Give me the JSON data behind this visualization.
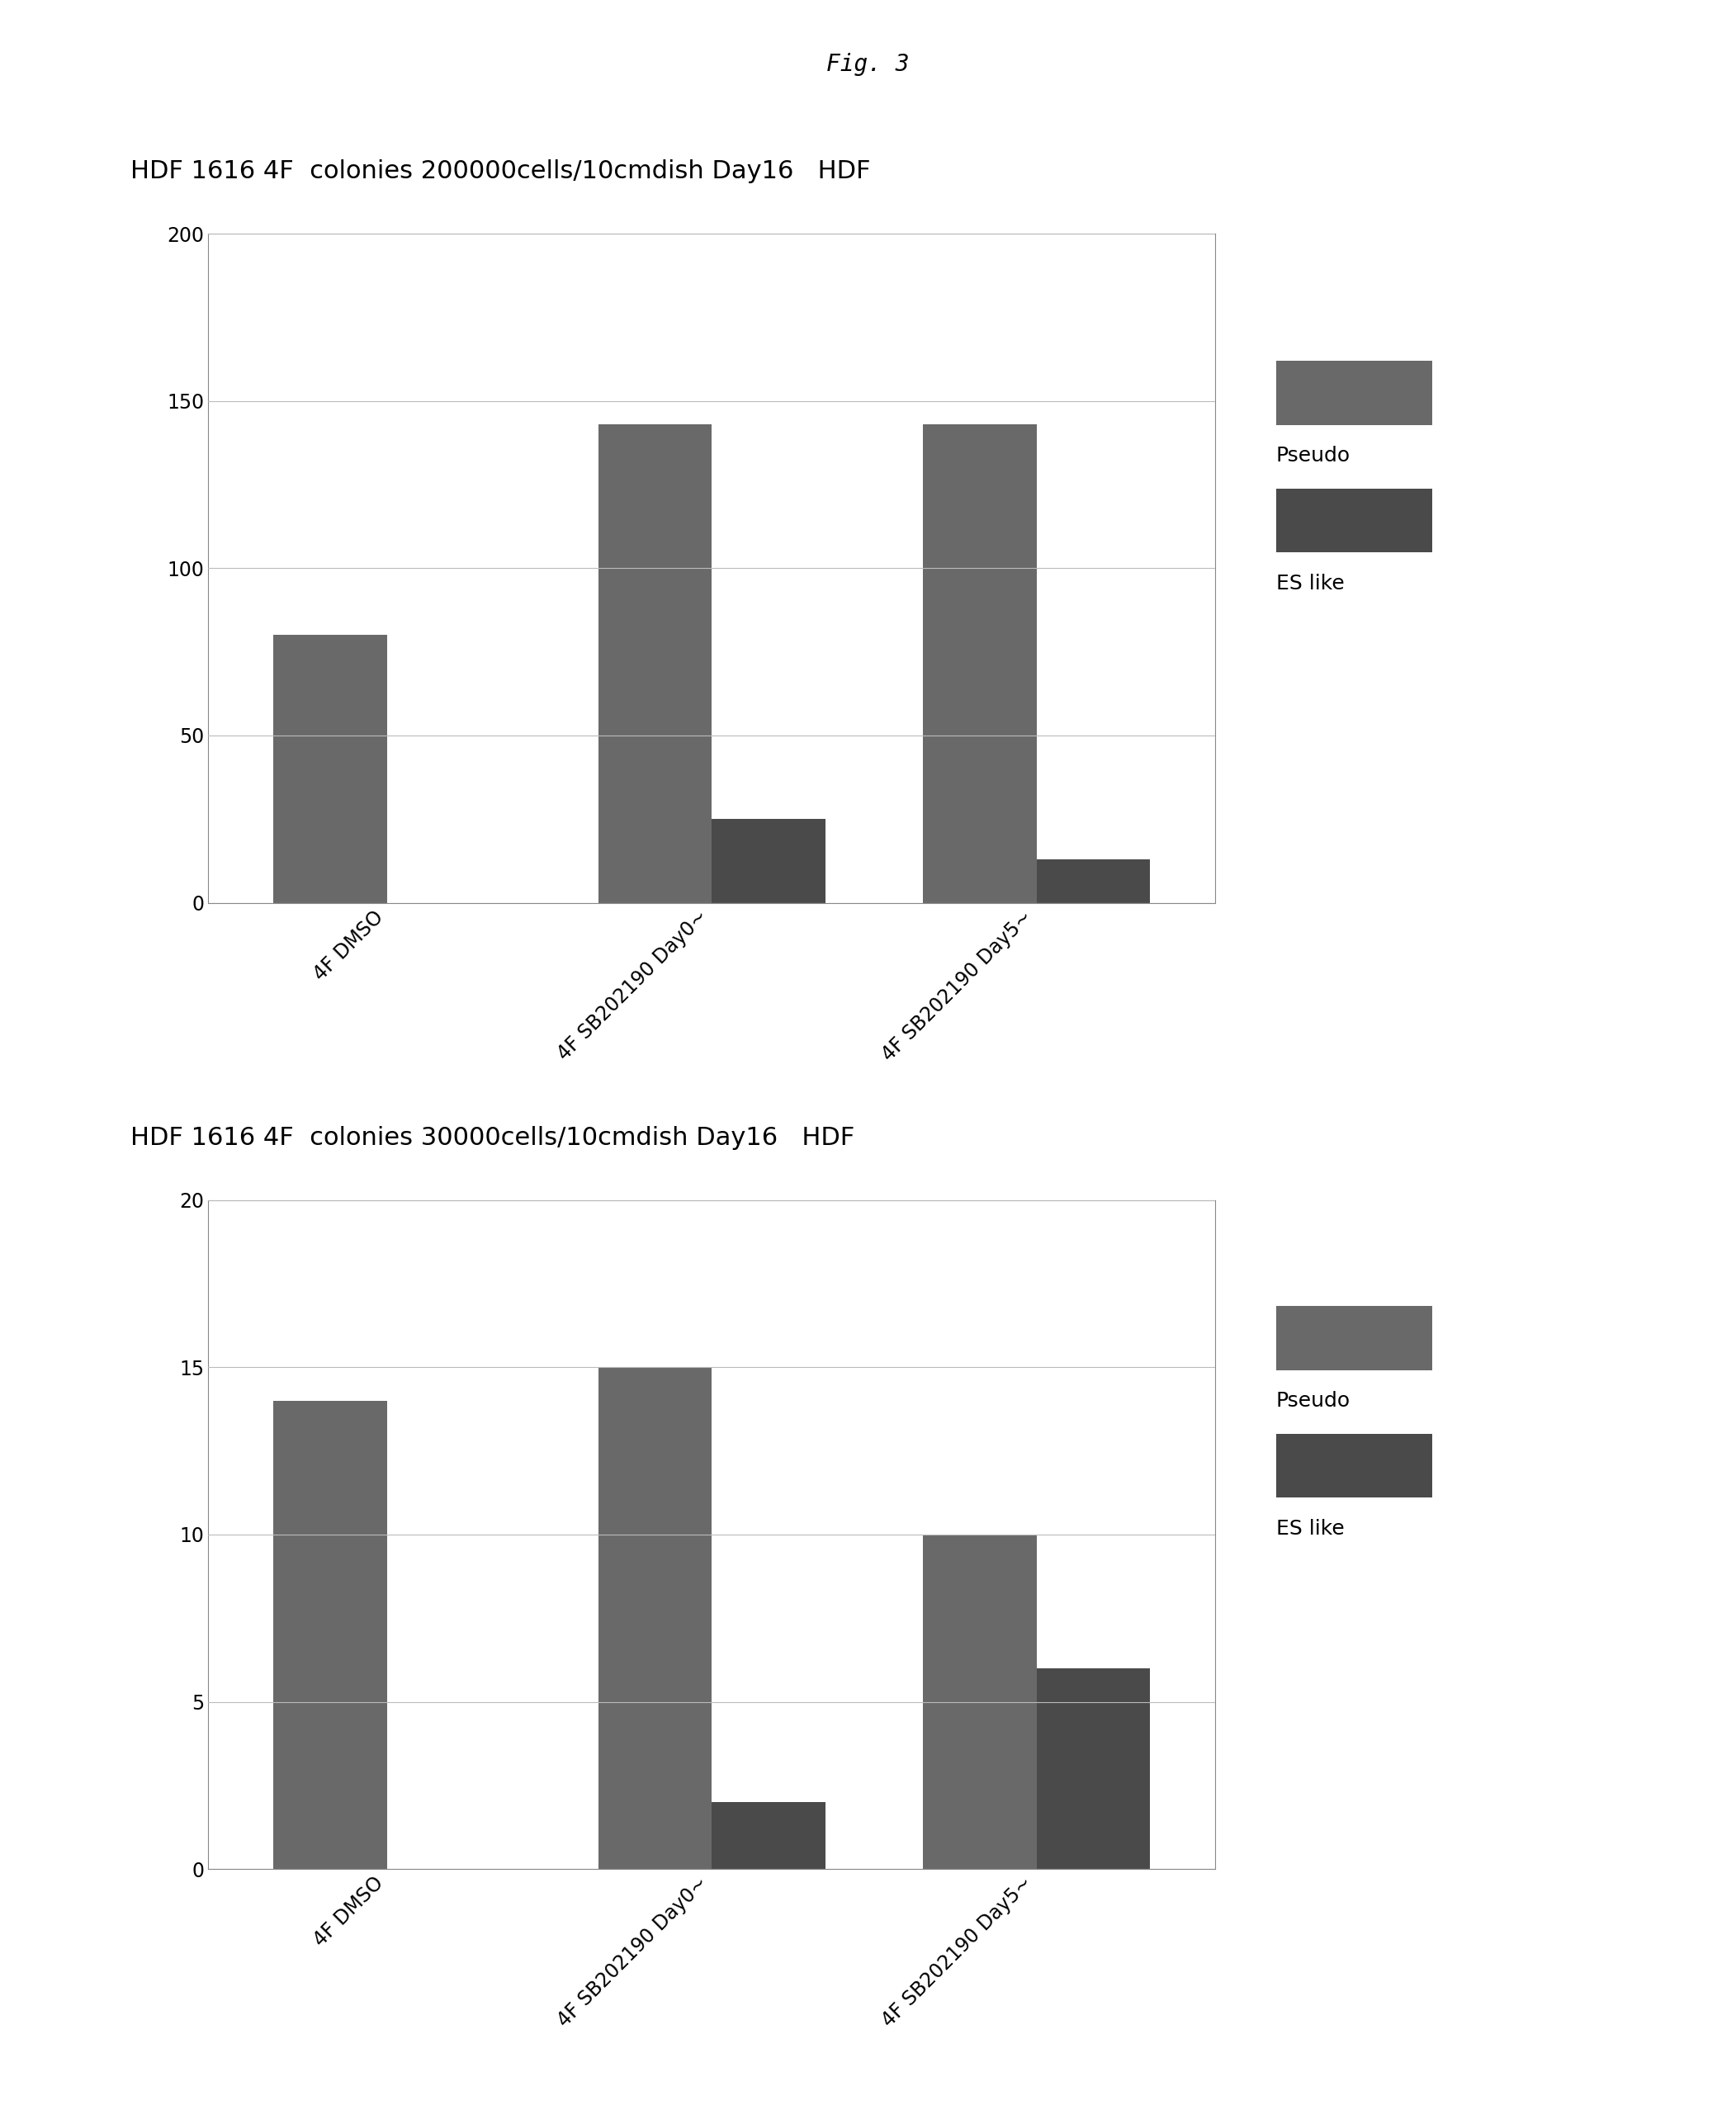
{
  "fig_title": "Fig. 3",
  "chart1": {
    "title": "HDF 1616 4F  colonies 200000cells/10cmdish Day16   HDF",
    "categories": [
      "4F DMSO",
      "4F SB202190 Day0~",
      "4F SB202190 Day5~"
    ],
    "pseudo": [
      80,
      143,
      143
    ],
    "es_like": [
      0,
      25,
      13
    ],
    "ylim": [
      0,
      200
    ],
    "yticks": [
      0,
      50,
      100,
      150,
      200
    ]
  },
  "chart2": {
    "title": "HDF 1616 4F  colonies 30000cells/10cmdish Day16   HDF",
    "categories": [
      "4F DMSO",
      "4F SB202190 Day0~",
      "4F SB202190 Day5~"
    ],
    "pseudo": [
      14,
      15,
      10
    ],
    "es_like": [
      0,
      2,
      6
    ],
    "ylim": [
      0,
      20
    ],
    "yticks": [
      0,
      5,
      10,
      15,
      20
    ]
  },
  "pseudo_color": "#696969",
  "es_like_color": "#4a4a4a",
  "pseudo_label": "Pseudo",
  "es_like_label": "ES like",
  "bar_width": 0.35,
  "background_color": "#ffffff",
  "fig_title_fontsize": 20,
  "title_fontsize": 22,
  "tick_fontsize": 17,
  "legend_fontsize": 18
}
